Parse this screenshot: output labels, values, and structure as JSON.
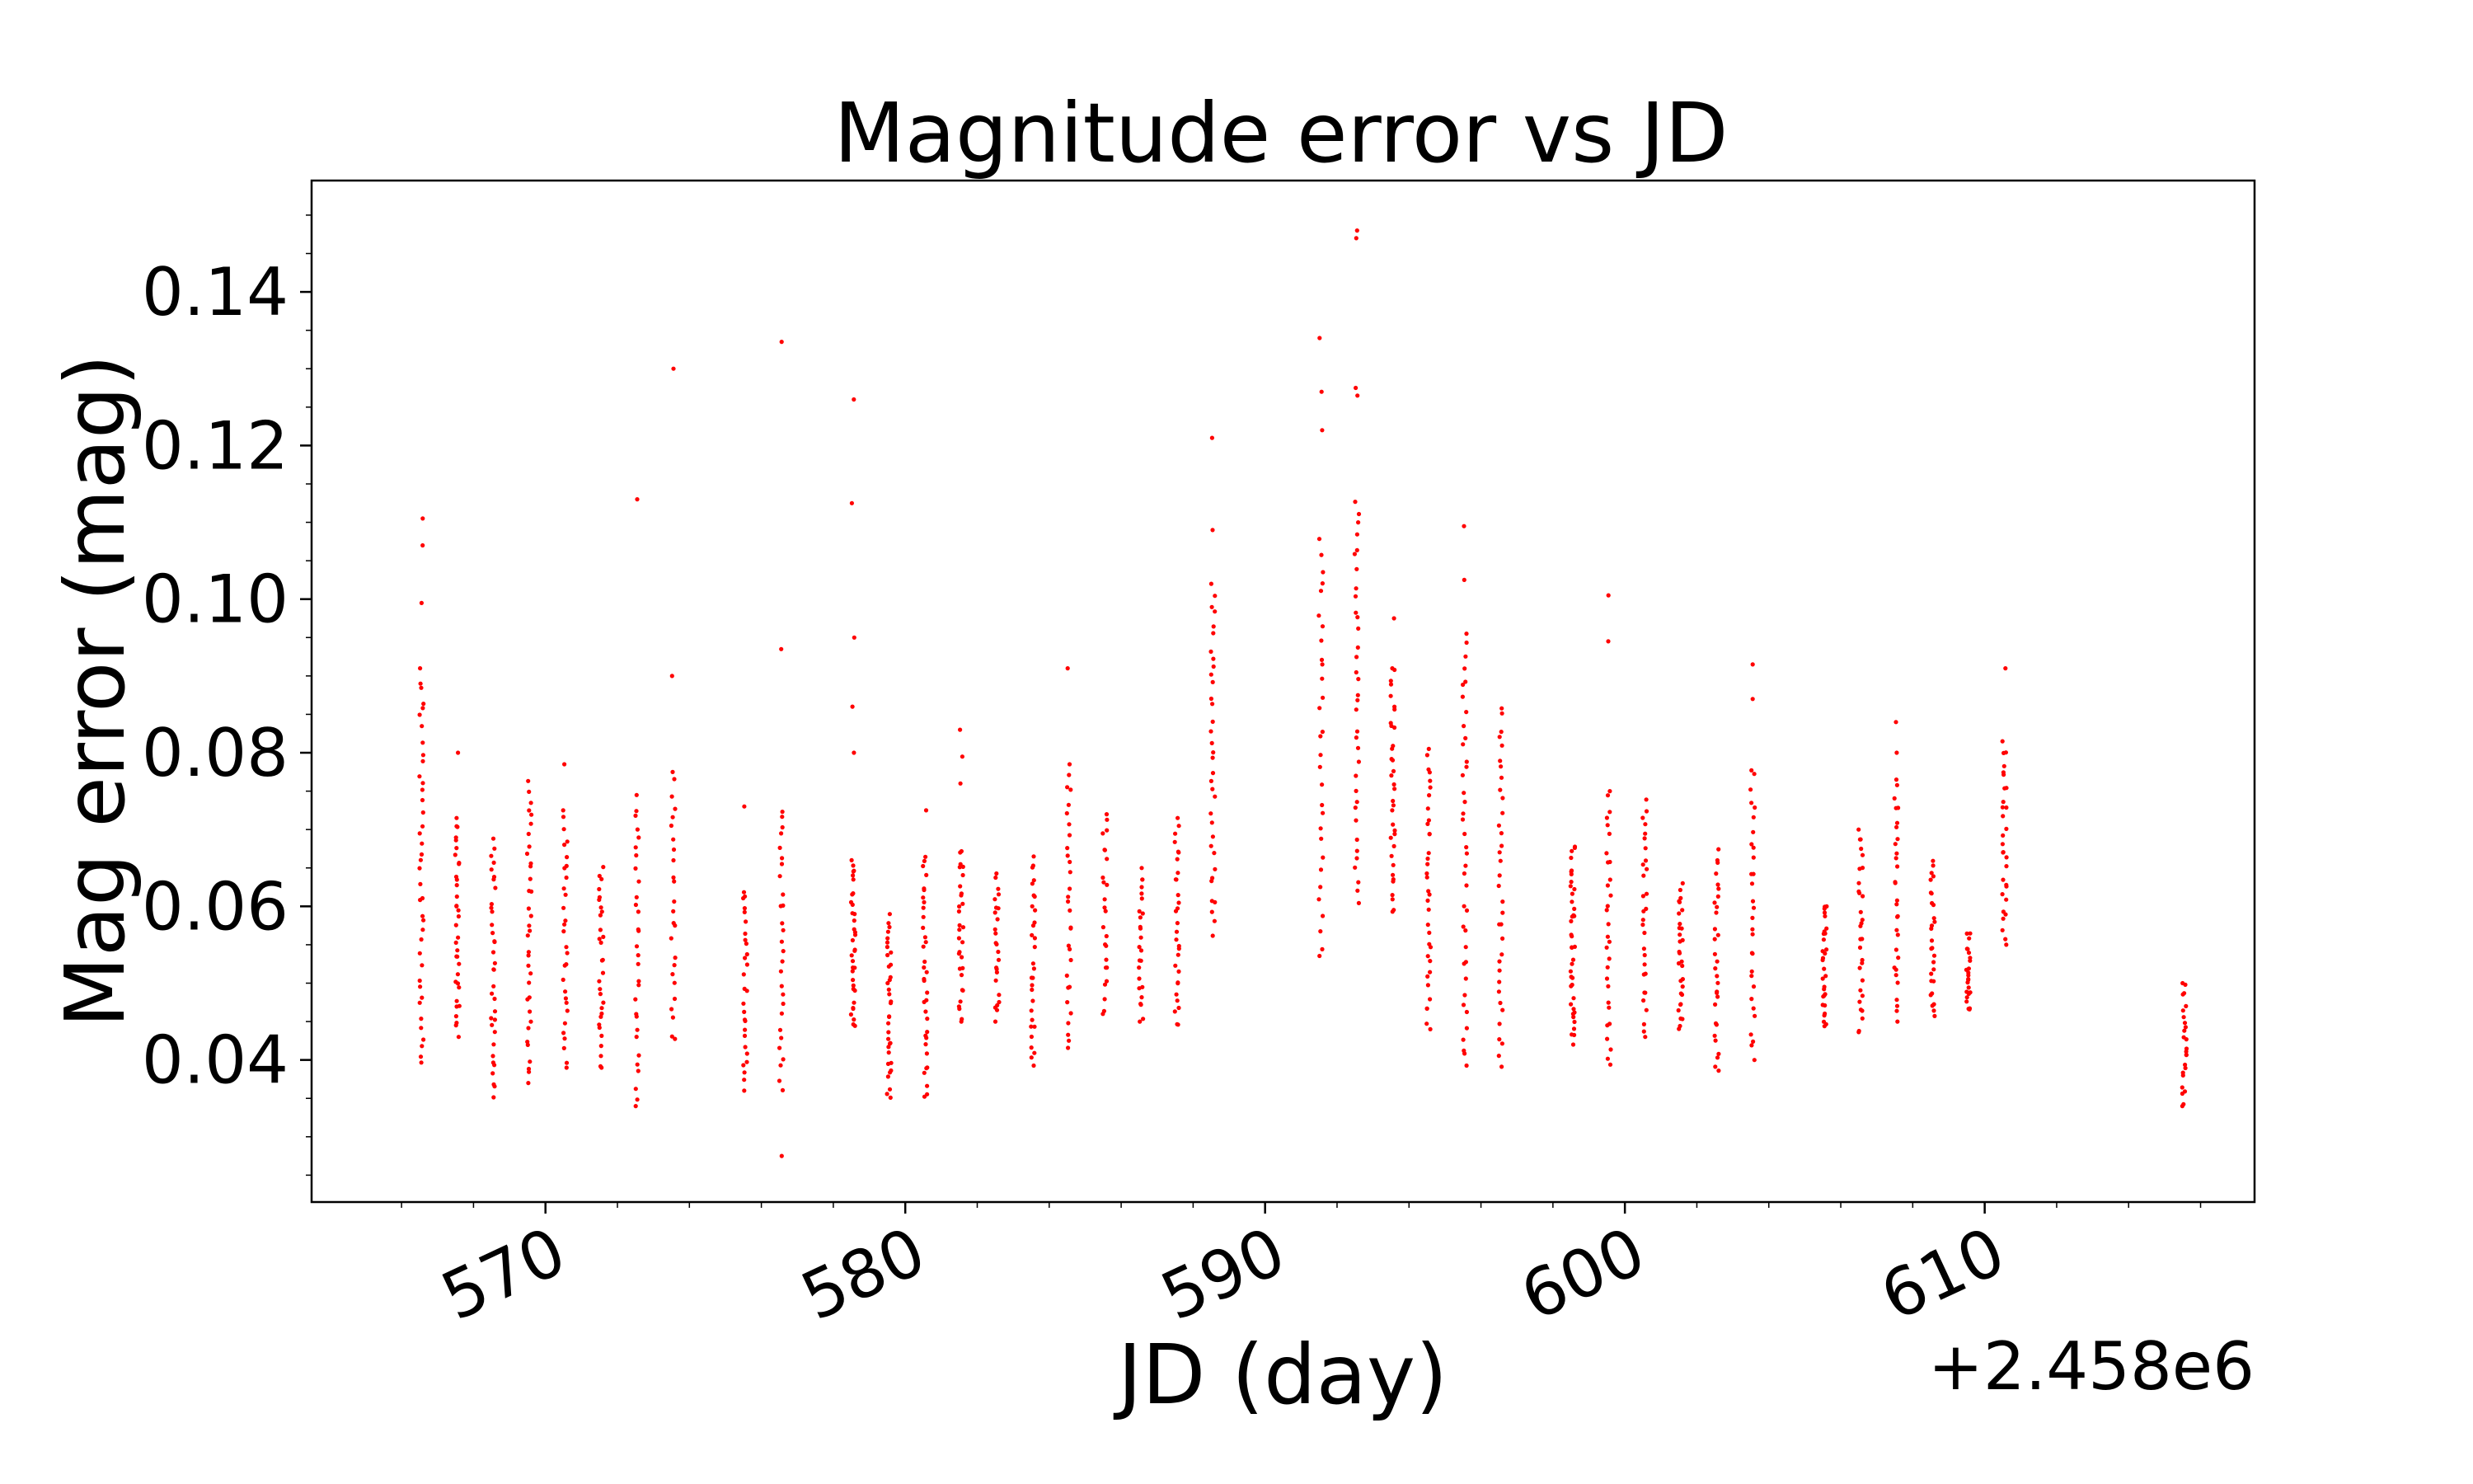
{
  "chart_data": {
    "type": "scatter",
    "title": "Magnitude error vs JD",
    "xlabel": "JD (day)",
    "ylabel": "Mag error (mag)",
    "x_offset_label": "+2.458e6",
    "x_offset": 2458000,
    "xlim": [
      563.5,
      617.5
    ],
    "ylim": [
      0.0215,
      0.1545
    ],
    "xticks": [
      570,
      580,
      590,
      600,
      610
    ],
    "xtick_labels": [
      "570",
      "580",
      "590",
      "600",
      "610"
    ],
    "yticks": [
      0.04,
      0.06,
      0.08,
      0.1,
      0.12,
      0.14
    ],
    "ytick_labels": [
      "0.04",
      "0.06",
      "0.08",
      "0.10",
      "0.12",
      "0.14"
    ],
    "xtick_rotation_deg": 25,
    "grid": false,
    "legend": "none",
    "marker_color": "#ff0000",
    "nights": [
      {
        "x": 566.55,
        "ymin": 0.039,
        "ymax": 0.091,
        "n": 40,
        "extra": [
          0.0995,
          0.107,
          0.1105
        ]
      },
      {
        "x": 567.55,
        "ymin": 0.043,
        "ymax": 0.0715,
        "n": 35,
        "extra": [
          0.08
        ]
      },
      {
        "x": 568.55,
        "ymin": 0.035,
        "ymax": 0.069,
        "n": 35,
        "extra": []
      },
      {
        "x": 569.55,
        "ymin": 0.037,
        "ymax": 0.0765,
        "n": 35,
        "extra": []
      },
      {
        "x": 570.55,
        "ymin": 0.039,
        "ymax": 0.0725,
        "n": 30,
        "extra": [
          0.0785
        ]
      },
      {
        "x": 571.55,
        "ymin": 0.039,
        "ymax": 0.0655,
        "n": 30,
        "extra": []
      },
      {
        "x": 572.55,
        "ymin": 0.034,
        "ymax": 0.0745,
        "n": 30,
        "extra": [
          0.113
        ]
      },
      {
        "x": 573.55,
        "ymin": 0.042,
        "ymax": 0.0775,
        "n": 25,
        "extra": [
          0.09,
          0.13
        ]
      },
      {
        "x": 575.55,
        "ymin": 0.036,
        "ymax": 0.0625,
        "n": 28,
        "extra": [
          0.073
        ]
      },
      {
        "x": 576.55,
        "ymin": 0.036,
        "ymax": 0.073,
        "n": 28,
        "extra": [
          0.0275,
          0.0935,
          0.1335
        ]
      },
      {
        "x": 578.55,
        "ymin": 0.044,
        "ymax": 0.066,
        "n": 35,
        "extra": [
          0.08,
          0.086,
          0.095,
          0.1125,
          0.126
        ]
      },
      {
        "x": 579.55,
        "ymin": 0.035,
        "ymax": 0.059,
        "n": 35,
        "extra": []
      },
      {
        "x": 580.55,
        "ymin": 0.035,
        "ymax": 0.0665,
        "n": 35,
        "extra": [
          0.0725
        ]
      },
      {
        "x": 581.55,
        "ymin": 0.045,
        "ymax": 0.0675,
        "n": 30,
        "extra": [
          0.076,
          0.0795,
          0.083
        ]
      },
      {
        "x": 582.55,
        "ymin": 0.045,
        "ymax": 0.0645,
        "n": 25,
        "extra": []
      },
      {
        "x": 583.55,
        "ymin": 0.039,
        "ymax": 0.0665,
        "n": 30,
        "extra": []
      },
      {
        "x": 584.55,
        "ymin": 0.041,
        "ymax": 0.0785,
        "n": 30,
        "extra": [
          0.091
        ]
      },
      {
        "x": 585.55,
        "ymin": 0.046,
        "ymax": 0.072,
        "n": 25,
        "extra": []
      },
      {
        "x": 586.55,
        "ymin": 0.045,
        "ymax": 0.065,
        "n": 25,
        "extra": []
      },
      {
        "x": 587.55,
        "ymin": 0.044,
        "ymax": 0.0715,
        "n": 30,
        "extra": []
      },
      {
        "x": 588.55,
        "ymin": 0.056,
        "ymax": 0.102,
        "n": 35,
        "extra": [
          0.109,
          0.121
        ]
      },
      {
        "x": 591.55,
        "ymin": 0.053,
        "ymax": 0.108,
        "n": 30,
        "extra": [
          0.122,
          0.127,
          0.134
        ]
      },
      {
        "x": 592.55,
        "ymin": 0.06,
        "ymax": 0.113,
        "n": 35,
        "extra": [
          0.1265,
          0.1275,
          0.147,
          0.148
        ]
      },
      {
        "x": 593.55,
        "ymin": 0.059,
        "ymax": 0.091,
        "n": 35,
        "extra": [
          0.0975
        ]
      },
      {
        "x": 594.55,
        "ymin": 0.044,
        "ymax": 0.0805,
        "n": 35,
        "extra": []
      },
      {
        "x": 595.55,
        "ymin": 0.039,
        "ymax": 0.0955,
        "n": 40,
        "extra": [
          0.1025,
          0.1095
        ]
      },
      {
        "x": 596.55,
        "ymin": 0.039,
        "ymax": 0.086,
        "n": 35,
        "extra": []
      },
      {
        "x": 598.55,
        "ymin": 0.042,
        "ymax": 0.068,
        "n": 40,
        "extra": []
      },
      {
        "x": 599.55,
        "ymin": 0.039,
        "ymax": 0.075,
        "n": 30,
        "extra": [
          0.0945,
          0.1005
        ]
      },
      {
        "x": 600.55,
        "ymin": 0.043,
        "ymax": 0.074,
        "n": 30,
        "extra": []
      },
      {
        "x": 601.55,
        "ymin": 0.044,
        "ymax": 0.063,
        "n": 30,
        "extra": []
      },
      {
        "x": 602.55,
        "ymin": 0.0385,
        "ymax": 0.0675,
        "n": 30,
        "extra": []
      },
      {
        "x": 603.55,
        "ymin": 0.04,
        "ymax": 0.078,
        "n": 30,
        "extra": [
          0.087,
          0.0915
        ]
      },
      {
        "x": 605.55,
        "ymin": 0.044,
        "ymax": 0.0605,
        "n": 30,
        "extra": []
      },
      {
        "x": 606.55,
        "ymin": 0.043,
        "ymax": 0.07,
        "n": 30,
        "extra": []
      },
      {
        "x": 607.55,
        "ymin": 0.045,
        "ymax": 0.0765,
        "n": 30,
        "extra": [
          0.08,
          0.084
        ]
      },
      {
        "x": 608.55,
        "ymin": 0.045,
        "ymax": 0.066,
        "n": 28,
        "extra": []
      },
      {
        "x": 609.55,
        "ymin": 0.046,
        "ymax": 0.0565,
        "n": 25,
        "extra": []
      },
      {
        "x": 610.55,
        "ymin": 0.055,
        "ymax": 0.0815,
        "n": 30,
        "extra": [
          0.091
        ]
      },
      {
        "x": 615.55,
        "ymin": 0.034,
        "ymax": 0.05,
        "n": 25,
        "extra": []
      }
    ]
  }
}
